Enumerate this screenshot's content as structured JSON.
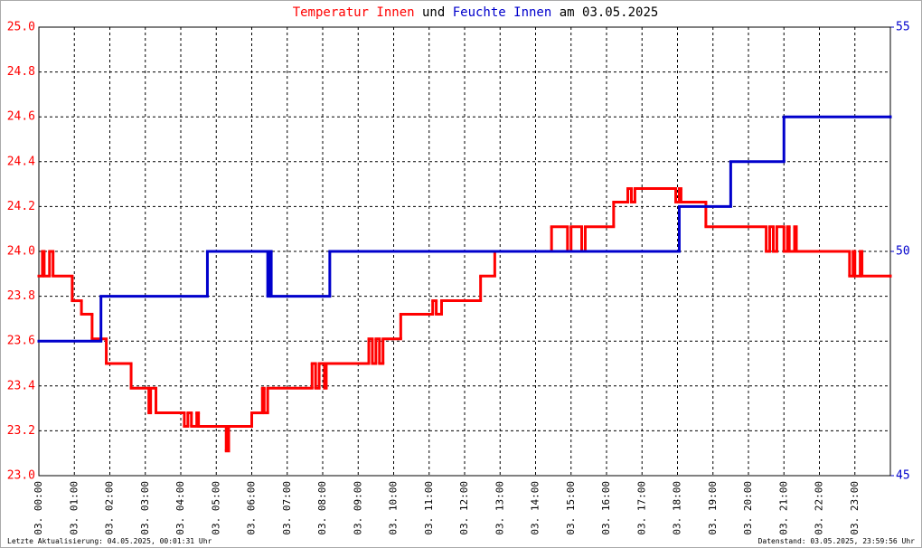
{
  "chart_data": {
    "type": "line",
    "drawstyle": "steps-post",
    "title_join": "und",
    "title_date": "am 03.05.2025",
    "footer_left": "Letzte Aktualisierung: 04.05.2025, 00:01:31 Uhr",
    "footer_right": "Datenstand: 03.05.2025, 23:59:56 Uhr",
    "grid": true,
    "xlim": [
      0,
      24
    ],
    "xticks": [
      {
        "value": 0,
        "label": "03. 00:00"
      },
      {
        "value": 1,
        "label": "03. 01:00"
      },
      {
        "value": 2,
        "label": "03. 02:00"
      },
      {
        "value": 3,
        "label": "03. 03:00"
      },
      {
        "value": 4,
        "label": "03. 04:00"
      },
      {
        "value": 5,
        "label": "03. 05:00"
      },
      {
        "value": 6,
        "label": "03. 06:00"
      },
      {
        "value": 7,
        "label": "03. 07:00"
      },
      {
        "value": 8,
        "label": "03. 08:00"
      },
      {
        "value": 9,
        "label": "03. 09:00"
      },
      {
        "value": 10,
        "label": "03. 10:00"
      },
      {
        "value": 11,
        "label": "03. 11:00"
      },
      {
        "value": 12,
        "label": "03. 12:00"
      },
      {
        "value": 13,
        "label": "03. 13:00"
      },
      {
        "value": 14,
        "label": "03. 14:00"
      },
      {
        "value": 15,
        "label": "03. 15:00"
      },
      {
        "value": 16,
        "label": "03. 16:00"
      },
      {
        "value": 17,
        "label": "03. 17:00"
      },
      {
        "value": 18,
        "label": "03. 18:00"
      },
      {
        "value": 19,
        "label": "03. 19:00"
      },
      {
        "value": 20,
        "label": "03. 20:00"
      },
      {
        "value": 21,
        "label": "03. 21:00"
      },
      {
        "value": 22,
        "label": "03. 22:00"
      },
      {
        "value": 23,
        "label": "03. 23:00"
      }
    ],
    "ylim": [
      23,
      25
    ],
    "yticks": [
      {
        "value": 23,
        "label": "23.0"
      },
      23.2,
      23.4,
      23.6,
      23.8,
      {
        "value": 24,
        "label": "24.0"
      },
      24.2,
      24.4,
      24.6,
      24.8,
      {
        "value": 25,
        "label": "25.0"
      }
    ],
    "y_color": "#ff0000",
    "y2lim": [
      45,
      55
    ],
    "y2ticks": [
      45,
      50,
      55
    ],
    "y2_color": "#0000cc",
    "series": [
      {
        "name": "Temperatur Innen",
        "color": "#ff0000",
        "axis": "y",
        "x": [
          0,
          0.1,
          0.15,
          0.3,
          0.4,
          0.94,
          1.2,
          1.5,
          1.9,
          2.6,
          3.1,
          3.15,
          3.3,
          4.1,
          4.2,
          4.3,
          4.45,
          4.5,
          5.28,
          5.35,
          6.0,
          6.3,
          6.35,
          6.45,
          7.7,
          7.8,
          7.9,
          8.05,
          8.1,
          9.3,
          9.4,
          9.5,
          9.6,
          9.7,
          10.2,
          11.1,
          11.2,
          11.35,
          12.45,
          12.85,
          14.45,
          14.9,
          15.0,
          15.3,
          15.4,
          16.2,
          16.6,
          16.7,
          16.8,
          17.95,
          18.05,
          18.1,
          18.8,
          20.5,
          20.6,
          20.7,
          20.8,
          21.0,
          21.1,
          21.15,
          21.3,
          21.35,
          22.85,
          22.95,
          23.0,
          23.15,
          23.2,
          24
        ],
        "values": [
          23.89,
          24.0,
          23.89,
          24.0,
          23.89,
          23.78,
          23.72,
          23.61,
          23.5,
          23.39,
          23.28,
          23.39,
          23.28,
          23.22,
          23.28,
          23.22,
          23.28,
          23.22,
          23.11,
          23.22,
          23.28,
          23.39,
          23.28,
          23.39,
          23.5,
          23.39,
          23.5,
          23.39,
          23.5,
          23.61,
          23.5,
          23.61,
          23.5,
          23.61,
          23.72,
          23.78,
          23.72,
          23.78,
          23.89,
          24.0,
          24.11,
          24.0,
          24.11,
          24.0,
          24.11,
          24.22,
          24.28,
          24.22,
          24.28,
          24.22,
          24.28,
          24.22,
          24.11,
          24.0,
          24.11,
          24.0,
          24.11,
          24.0,
          24.11,
          24.0,
          24.11,
          24.0,
          23.89,
          24.0,
          23.89,
          24.0,
          23.89,
          23.89
        ]
      },
      {
        "name": "Feuchte Innen",
        "color": "#0000cc",
        "axis": "y2",
        "x": [
          0,
          1.75,
          4.75,
          6.45,
          6.5,
          6.55,
          8.2,
          18.05,
          19.5,
          21.0,
          24
        ],
        "values": [
          48,
          49,
          50,
          49,
          50,
          49,
          50,
          51,
          52,
          53,
          53
        ]
      }
    ]
  }
}
